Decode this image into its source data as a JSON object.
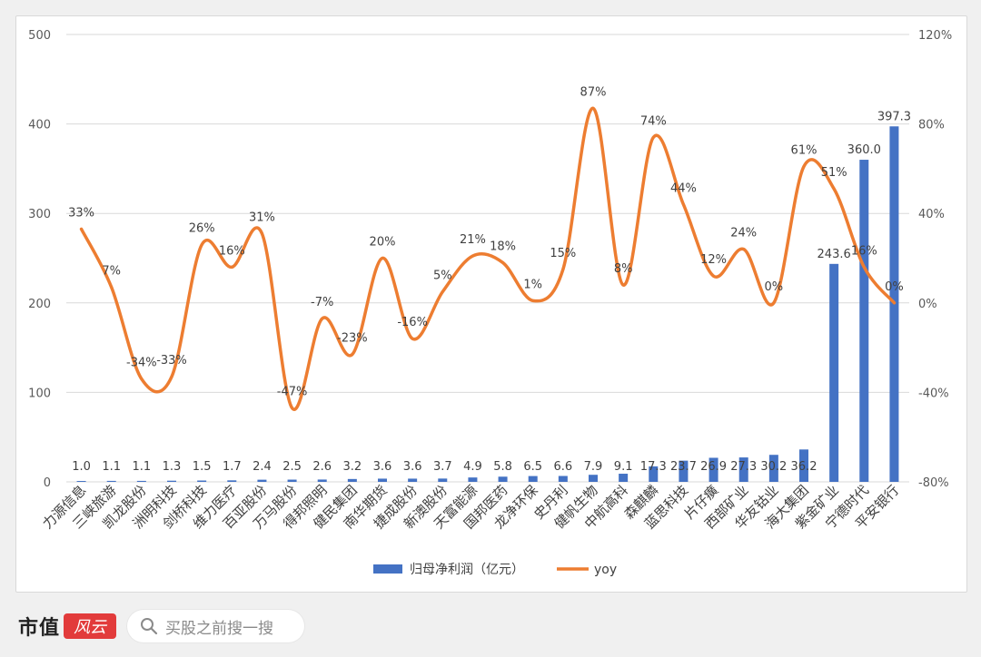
{
  "chart_data": {
    "type": "bar",
    "categories": [
      "力源信息",
      "三峡旅游",
      "凯龙股份",
      "洲明科技",
      "剑桥科技",
      "维力医疗",
      "百亚股份",
      "万马股份",
      "得邦照明",
      "健民集团",
      "南华期货",
      "捷成股份",
      "新澳股份",
      "天富能源",
      "国邦医药",
      "龙净环保",
      "史丹利",
      "健帆生物",
      "中航高科",
      "森麒麟",
      "蓝思科技",
      "片仔癀",
      "西部矿业",
      "华友钴业",
      "海大集团",
      "紫金矿业",
      "宁德时代",
      "平安银行"
    ],
    "series": [
      {
        "name": "归母净利润（亿元）",
        "type": "bar",
        "axis": "left",
        "color": "#4472c4",
        "values": [
          1.0,
          1.1,
          1.1,
          1.3,
          1.5,
          1.7,
          2.4,
          2.5,
          2.6,
          3.2,
          3.6,
          3.6,
          3.7,
          4.9,
          5.8,
          6.5,
          6.6,
          7.9,
          9.1,
          17.3,
          23.7,
          26.9,
          27.3,
          30.2,
          36.2,
          243.6,
          360.0,
          397.3
        ],
        "labels": [
          "1.0",
          "1.1",
          "1.1",
          "1.3",
          "1.5",
          "1.7",
          "2.4",
          "2.5",
          "2.6",
          "3.2",
          "3.6",
          "3.6",
          "3.7",
          "4.9",
          "5.8",
          "6.5",
          "6.6",
          "7.9",
          "9.1",
          "17.3",
          "23.7",
          "26.9",
          "27.3",
          "30.2",
          "36.2",
          "243.6",
          "360.0",
          "397.3"
        ]
      },
      {
        "name": "yoy",
        "type": "line",
        "axis": "right",
        "color": "#ed7d31",
        "values": [
          33,
          7,
          -34,
          -33,
          26,
          16,
          31,
          -47,
          -7,
          -23,
          20,
          -16,
          5,
          21,
          18,
          1,
          15,
          87,
          8,
          74,
          44,
          12,
          24,
          0,
          61,
          51,
          16,
          0
        ],
        "labels": [
          "33%",
          "7%",
          "-34%",
          "-33%",
          "26%",
          "16%",
          "31%",
          "-47%",
          "-7%",
          "-23%",
          "20%",
          "-16%",
          "5%",
          "21%",
          "18%",
          "1%",
          "15%",
          "87%",
          "8%",
          "74%",
          "44%",
          "12%",
          "24%",
          "0%",
          "61%",
          "51%",
          "16%",
          "0%"
        ]
      }
    ],
    "left_axis": {
      "ylim": [
        0,
        500
      ],
      "ticks": [
        "0",
        "100",
        "200",
        "300",
        "400",
        "500"
      ]
    },
    "right_axis": {
      "ylim": [
        -80,
        120
      ],
      "ticks": [
        "-80%",
        "-40%",
        "0%",
        "40%",
        "80%",
        "120%"
      ]
    },
    "grid": true,
    "legend_position": "bottom"
  },
  "footer": {
    "brand": "市值",
    "brand_logo": "风云",
    "search_placeholder": "买股之前搜一搜"
  }
}
